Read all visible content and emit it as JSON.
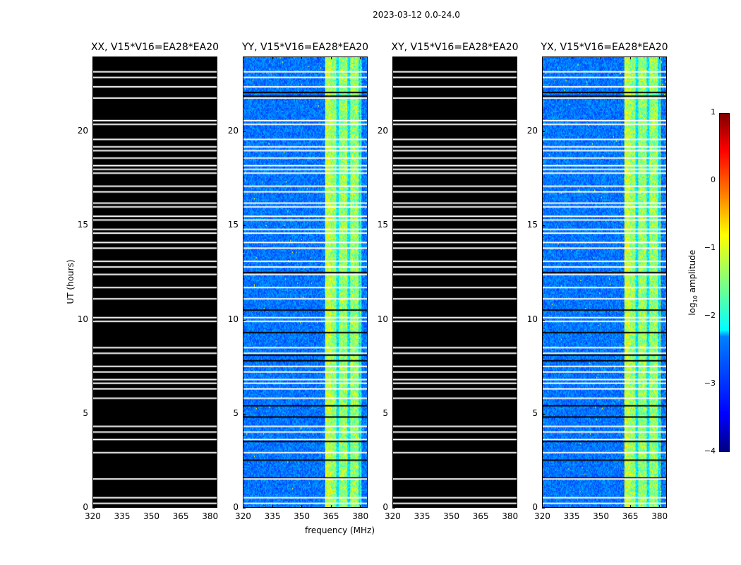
{
  "suptitle": "2023-03-12 0.0-24.0",
  "chart_data": {
    "type": "heatmap",
    "title": "2023-03-12 0.0-24.0",
    "xlabel": "frequency (MHz)",
    "ylabel": "UT (hours)",
    "xlim": [
      320,
      384
    ],
    "ylim": [
      0,
      24
    ],
    "xticks": [
      "320",
      "335",
      "350",
      "365",
      "380"
    ],
    "yticks": [
      "0",
      "5",
      "10",
      "15",
      "20"
    ],
    "xtick_values": [
      320,
      335,
      350,
      365,
      380
    ],
    "ytick_values": [
      0,
      5,
      10,
      15,
      20
    ],
    "panels": [
      {
        "title": "XX, V15*V16=EA28*EA20",
        "state": "empty"
      },
      {
        "title": "YY, V15*V16=EA28*EA20",
        "state": "data"
      },
      {
        "title": "XY, V15*V16=EA28*EA20",
        "state": "empty"
      },
      {
        "title": "YX, V15*V16=EA28*EA20",
        "state": "data"
      }
    ],
    "bright_band_mhz": [
      362,
      381
    ],
    "flagged_hours": [
      0.2,
      0.5,
      1.5,
      2.9,
      3.6,
      4.0,
      4.3,
      5.8,
      6.3,
      6.6,
      6.8,
      7.2,
      7.5,
      8.2,
      8.5,
      9.9,
      10.1,
      11.1,
      11.7,
      12.4,
      12.8,
      13.1,
      13.8,
      14.1,
      14.6,
      14.8,
      15.3,
      15.5,
      16.0,
      16.2,
      16.8,
      17.1,
      17.8,
      18.0,
      18.2,
      18.6,
      19.0,
      19.2,
      19.6,
      20.4,
      20.6,
      21.8,
      22.4,
      22.9,
      23.2
    ],
    "zero_hours": [
      1.55,
      2.5,
      3.5,
      4.8,
      5.4,
      7.8,
      8.1,
      9.3,
      10.5,
      12.5,
      21.9,
      22.1
    ],
    "colorbar": {
      "label": "log10 amplitude",
      "label_base": "log",
      "label_sub": "10",
      "label_rest": " amplitude",
      "range": [
        -4,
        1
      ],
      "ticks": [
        "1",
        "0",
        "−1",
        "−2",
        "−3",
        "−4"
      ],
      "tick_values": [
        1,
        0,
        -1,
        -2,
        -3,
        -4
      ],
      "colormap": "jet"
    }
  }
}
